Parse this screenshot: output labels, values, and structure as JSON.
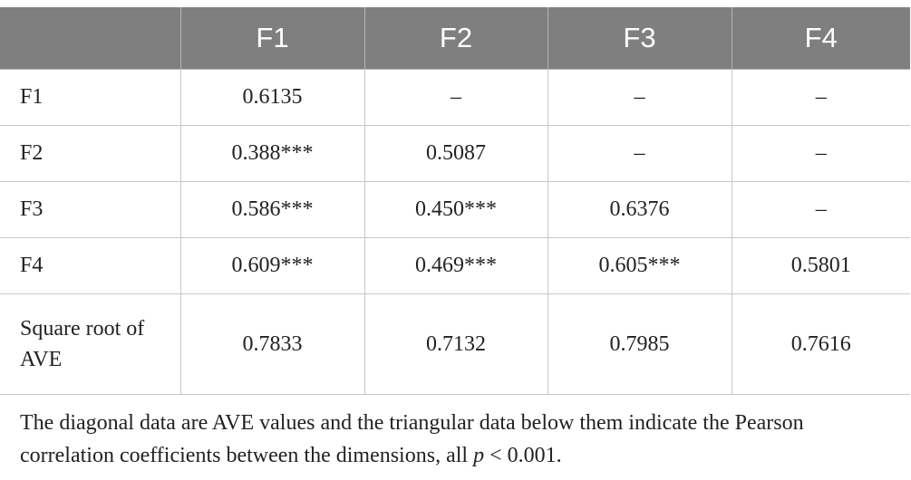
{
  "table": {
    "header": [
      "",
      "F1",
      "F2",
      "F3",
      "F4"
    ],
    "rows": [
      {
        "label": "F1",
        "cells": [
          "0.6135",
          "–",
          "–",
          "–"
        ]
      },
      {
        "label": "F2",
        "cells": [
          "0.388***",
          "0.5087",
          "–",
          "–"
        ]
      },
      {
        "label": "F3",
        "cells": [
          "0.586***",
          "0.450***",
          "0.6376",
          "–"
        ]
      },
      {
        "label": "F4",
        "cells": [
          "0.609***",
          "0.469***",
          "0.605***",
          "0.5801"
        ]
      },
      {
        "label": "Square root of AVE",
        "cells": [
          "0.7833",
          "0.7132",
          "0.7985",
          "0.7616"
        ]
      }
    ]
  },
  "footnote": {
    "text": "The diagonal data are AVE values and the triangular data below them indicate the Pearson correlation coefficients between the dimensions, all ",
    "p_symbol": "p",
    "p_rest": " < 0.001."
  }
}
